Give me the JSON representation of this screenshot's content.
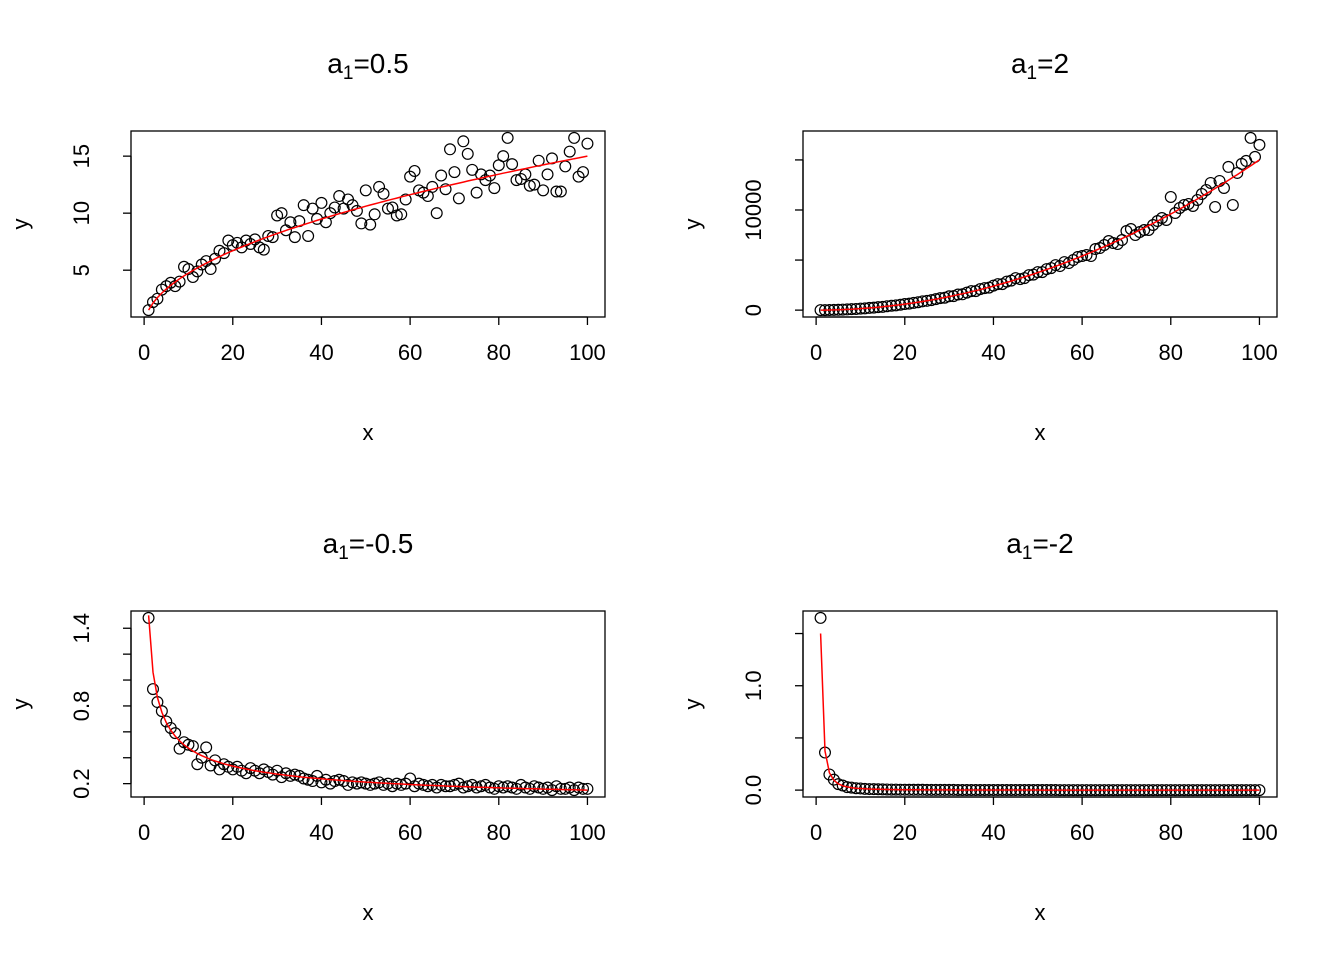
{
  "chart_data": [
    {
      "type": "scatter",
      "title_base": "a",
      "title_sub": "1",
      "title_rest": "=0.5",
      "xlabel": "x",
      "ylabel": "y",
      "fit_a": 0.5,
      "fit_coefficient": 1.5,
      "fit_color": "#ff0000",
      "point_color": "#000000",
      "x_ticks": [
        0,
        20,
        40,
        60,
        80,
        100
      ],
      "x_tick_labels": [
        "0",
        "20",
        "40",
        "60",
        "80",
        "100"
      ],
      "y_ticks": [
        5,
        10,
        15
      ],
      "y_tick_labels": [
        "5",
        "10",
        "15"
      ],
      "y": [
        1.5,
        2.2,
        2.5,
        3.3,
        3.6,
        3.9,
        3.6,
        4.0,
        5.3,
        5.1,
        4.4,
        4.9,
        5.5,
        5.8,
        5.1,
        6.0,
        6.7,
        6.5,
        7.6,
        7.2,
        7.4,
        7.0,
        7.6,
        7.3,
        7.7,
        7.0,
        6.8,
        8.0,
        7.9,
        9.8,
        10.0,
        8.5,
        9.2,
        7.9,
        9.3,
        10.7,
        8.0,
        10.4,
        9.5,
        10.9,
        9.2,
        10.0,
        10.5,
        11.5,
        10.4,
        11.2,
        10.7,
        10.2,
        9.1,
        12.0,
        9.0,
        9.9,
        12.3,
        11.7,
        10.4,
        10.5,
        9.8,
        9.9,
        11.2,
        13.2,
        13.7,
        12.0,
        11.8,
        11.5,
        12.3,
        10.0,
        13.3,
        12.1,
        15.6,
        13.6,
        11.3,
        16.3,
        15.2,
        13.8,
        11.8,
        13.4,
        12.9,
        13.3,
        12.2,
        14.2,
        15.0,
        16.6,
        14.3,
        12.9,
        13.0,
        13.4,
        12.4,
        12.5,
        14.6,
        12.0,
        13.4,
        14.8,
        11.9,
        11.9,
        14.1,
        15.4,
        16.6,
        13.2,
        13.6,
        16.1
      ]
    },
    {
      "type": "scatter",
      "title_base": "a",
      "title_sub": "1",
      "title_rest": "=2",
      "xlabel": "x",
      "ylabel": "y",
      "fit_a": 2,
      "fit_coefficient": 1.5,
      "fit_color": "#ff0000",
      "point_color": "#000000",
      "x_ticks": [
        0,
        20,
        40,
        60,
        80,
        100
      ],
      "x_tick_labels": [
        "0",
        "20",
        "40",
        "60",
        "80",
        "100"
      ],
      "y_ticks": [
        0,
        5000,
        10000,
        15000
      ],
      "y_tick_labels": [
        "0",
        "",
        "10000",
        ""
      ],
      "y": [
        2,
        6,
        14,
        25,
        36,
        56,
        70,
        100,
        118,
        155,
        175,
        222,
        250,
        300,
        330,
        390,
        440,
        480,
        540,
        610,
        650,
        730,
        790,
        880,
        930,
        1000,
        1100,
        1200,
        1240,
        1380,
        1400,
        1560,
        1580,
        1750,
        1900,
        1900,
        2100,
        2200,
        2250,
        2450,
        2600,
        2600,
        2850,
        2950,
        3200,
        3100,
        3200,
        3500,
        3550,
        3800,
        3800,
        4100,
        4200,
        4500,
        4400,
        4800,
        4700,
        5000,
        5300,
        5400,
        5500,
        5400,
        6100,
        6200,
        6500,
        6900,
        6700,
        6600,
        7000,
        7900,
        8100,
        7500,
        7800,
        8000,
        8000,
        8500,
        8900,
        9200,
        9000,
        11300,
        9700,
        10200,
        10500,
        10600,
        10400,
        11000,
        11600,
        12000,
        12700,
        10300,
        12900,
        12200,
        14300,
        10500,
        13700,
        14600,
        14900,
        17200,
        15300,
        16500
      ]
    },
    {
      "type": "scatter",
      "title_base": "a",
      "title_sub": "1",
      "title_rest": "=-0.5",
      "xlabel": "x",
      "ylabel": "y",
      "fit_a": -0.5,
      "fit_coefficient": 1.5,
      "fit_color": "#ff0000",
      "point_color": "#000000",
      "x_ticks": [
        0,
        20,
        40,
        60,
        80,
        100
      ],
      "x_tick_labels": [
        "0",
        "20",
        "40",
        "60",
        "80",
        "100"
      ],
      "y_ticks": [
        0.2,
        0.4,
        0.6,
        0.8,
        1.0,
        1.2,
        1.4
      ],
      "y_tick_labels": [
        "0.2",
        "",
        "",
        "0.8",
        "",
        "",
        "1.4"
      ],
      "y": [
        1.48,
        0.93,
        0.83,
        0.76,
        0.68,
        0.63,
        0.59,
        0.47,
        0.52,
        0.5,
        0.49,
        0.35,
        0.4,
        0.48,
        0.34,
        0.38,
        0.31,
        0.35,
        0.33,
        0.31,
        0.33,
        0.3,
        0.28,
        0.32,
        0.3,
        0.28,
        0.31,
        0.29,
        0.27,
        0.3,
        0.25,
        0.28,
        0.26,
        0.27,
        0.26,
        0.24,
        0.23,
        0.22,
        0.26,
        0.21,
        0.23,
        0.2,
        0.22,
        0.23,
        0.22,
        0.19,
        0.21,
        0.2,
        0.21,
        0.2,
        0.19,
        0.2,
        0.21,
        0.19,
        0.2,
        0.18,
        0.2,
        0.19,
        0.2,
        0.24,
        0.18,
        0.2,
        0.19,
        0.18,
        0.19,
        0.17,
        0.19,
        0.18,
        0.18,
        0.19,
        0.2,
        0.17,
        0.18,
        0.19,
        0.17,
        0.18,
        0.19,
        0.17,
        0.16,
        0.18,
        0.17,
        0.18,
        0.17,
        0.16,
        0.19,
        0.17,
        0.16,
        0.18,
        0.17,
        0.16,
        0.17,
        0.15,
        0.18,
        0.16,
        0.16,
        0.17,
        0.15,
        0.17,
        0.16,
        0.16
      ]
    },
    {
      "type": "scatter",
      "title_base": "a",
      "title_sub": "1",
      "title_rest": "=-2",
      "xlabel": "x",
      "ylabel": "y",
      "fit_a": -2,
      "fit_coefficient": 1.5,
      "fit_color": "#ff0000",
      "point_color": "#000000",
      "x_ticks": [
        0,
        20,
        40,
        60,
        80,
        100
      ],
      "x_tick_labels": [
        "0",
        "20",
        "40",
        "60",
        "80",
        "100"
      ],
      "y_ticks": [
        0,
        0.5,
        1.0,
        1.5
      ],
      "y_tick_labels": [
        "0.0",
        "",
        "1.0",
        ""
      ],
      "y": [
        1.65,
        0.36,
        0.15,
        0.1,
        0.057,
        0.044,
        0.029,
        0.024,
        0.018,
        0.016,
        0.012,
        0.01,
        0.009,
        0.008,
        0.007,
        0.006,
        0.005,
        0.005,
        0.004,
        0.004,
        0.003,
        0.003,
        0.003,
        0.003,
        0.002,
        0.002,
        0.002,
        0.002,
        0.002,
        0.002,
        0.002,
        0.001,
        0.001,
        0.001,
        0.001,
        0.001,
        0.001,
        0.001,
        0.001,
        0.001,
        0.001,
        0.001,
        0.001,
        0.001,
        0.001,
        0.001,
        0.001,
        0.001,
        0.001,
        0.001,
        0.001,
        0.001,
        0.001,
        0.001,
        0,
        0,
        0,
        0,
        0,
        0,
        0,
        0,
        0,
        0,
        0,
        0,
        0,
        0,
        0,
        0,
        0,
        0,
        0,
        0,
        0,
        0,
        0,
        0,
        0,
        0,
        0,
        0,
        0,
        0,
        0,
        0,
        0,
        0,
        0,
        0,
        0,
        0,
        0,
        0,
        0,
        0,
        0,
        0,
        0,
        0
      ]
    }
  ]
}
